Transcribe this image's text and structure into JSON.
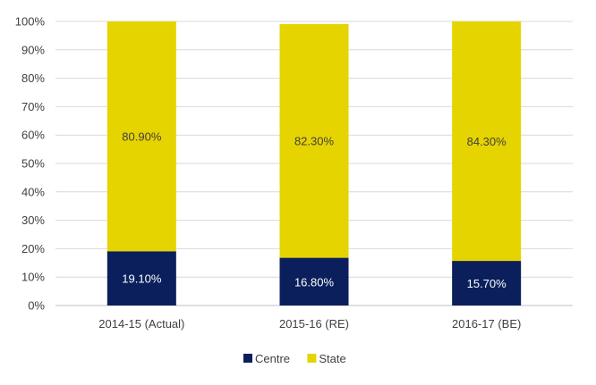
{
  "chart_data": {
    "type": "bar",
    "stacked": "percent",
    "categories": [
      "2014-15 (Actual)",
      "2015-16 (RE)",
      "2016-17 (BE)"
    ],
    "series": [
      {
        "name": "Centre",
        "values": [
          19.1,
          16.8,
          15.7
        ],
        "labels": [
          "19.10%",
          "16.80%",
          "15.70%"
        ],
        "color": "#0a1f5c",
        "label_color": "#ffffff"
      },
      {
        "name": "State",
        "values": [
          80.9,
          82.3,
          84.3
        ],
        "labels": [
          "80.90%",
          "82.30%",
          "84.30%"
        ],
        "color": "#e6d400",
        "label_color": "#404040"
      }
    ],
    "y_ticks": [
      "0%",
      "10%",
      "20%",
      "30%",
      "40%",
      "50%",
      "60%",
      "70%",
      "80%",
      "90%",
      "100%"
    ],
    "ylim": [
      0,
      100
    ],
    "grid": true,
    "legend_position": "bottom"
  }
}
